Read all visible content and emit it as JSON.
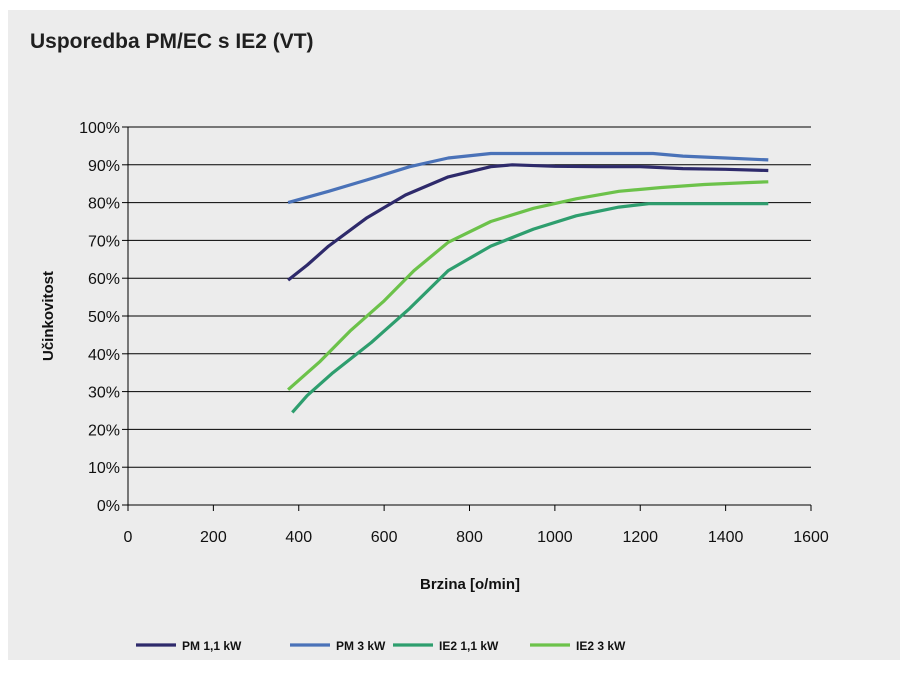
{
  "title": "Usporedba PM/EC s IE2 (VT)",
  "chart_data": {
    "type": "line",
    "title": "Usporedba PM/EC s IE2 (VT)",
    "xlabel": "Brzina [o/min]",
    "ylabel": "Učinkovitost",
    "xlim": [
      0,
      1600
    ],
    "ylim": [
      0,
      100
    ],
    "x_ticks": [
      0,
      200,
      400,
      600,
      800,
      1000,
      1200,
      1400,
      1600
    ],
    "x_tick_labels": [
      "0",
      "200",
      "400",
      "600",
      "800",
      "1000",
      "1200",
      "1400",
      "1600"
    ],
    "y_ticks": [
      0,
      10,
      20,
      30,
      40,
      50,
      60,
      70,
      80,
      90,
      100
    ],
    "y_tick_labels": [
      "0%",
      "10%",
      "20%",
      "30%",
      "40%",
      "50%",
      "60%",
      "70%",
      "80%",
      "90%",
      "100%"
    ],
    "grid": "horizontal",
    "legend_position": "bottom",
    "series": [
      {
        "name": "PM 1,1 kW",
        "color": "#2e2a6b",
        "points": [
          [
            375,
            59.5
          ],
          [
            420,
            63.5
          ],
          [
            470,
            68.5
          ],
          [
            560,
            76
          ],
          [
            650,
            82
          ],
          [
            750,
            86.8
          ],
          [
            850,
            89.5
          ],
          [
            900,
            90
          ],
          [
            1000,
            89.6
          ],
          [
            1100,
            89.5
          ],
          [
            1200,
            89.5
          ],
          [
            1300,
            89
          ],
          [
            1400,
            88.8
          ],
          [
            1500,
            88.5
          ]
        ]
      },
      {
        "name": "PM 3 kW",
        "color": "#4a72b8",
        "points": [
          [
            375,
            80
          ],
          [
            470,
            83
          ],
          [
            560,
            86
          ],
          [
            660,
            89.5
          ],
          [
            750,
            91.8
          ],
          [
            850,
            93
          ],
          [
            950,
            93
          ],
          [
            1050,
            93
          ],
          [
            1150,
            93
          ],
          [
            1230,
            93
          ],
          [
            1300,
            92.3
          ],
          [
            1400,
            91.8
          ],
          [
            1500,
            91.3
          ]
        ]
      },
      {
        "name": "IE2 1,1 kW",
        "color": "#2e9e6e",
        "points": [
          [
            385,
            24.5
          ],
          [
            420,
            29
          ],
          [
            480,
            35
          ],
          [
            570,
            43
          ],
          [
            660,
            52
          ],
          [
            750,
            62
          ],
          [
            850,
            68.5
          ],
          [
            950,
            73
          ],
          [
            1050,
            76.5
          ],
          [
            1150,
            78.8
          ],
          [
            1220,
            79.7
          ],
          [
            1300,
            79.7
          ],
          [
            1400,
            79.7
          ],
          [
            1500,
            79.7
          ]
        ]
      },
      {
        "name": "IE2 3 kW",
        "color": "#6cc24a",
        "points": [
          [
            375,
            30.5
          ],
          [
            450,
            38
          ],
          [
            520,
            46
          ],
          [
            600,
            54
          ],
          [
            670,
            62
          ],
          [
            750,
            69.5
          ],
          [
            850,
            75
          ],
          [
            950,
            78.5
          ],
          [
            1050,
            81
          ],
          [
            1150,
            83
          ],
          [
            1250,
            84
          ],
          [
            1350,
            84.8
          ],
          [
            1450,
            85.3
          ],
          [
            1500,
            85.5
          ]
        ]
      }
    ]
  }
}
